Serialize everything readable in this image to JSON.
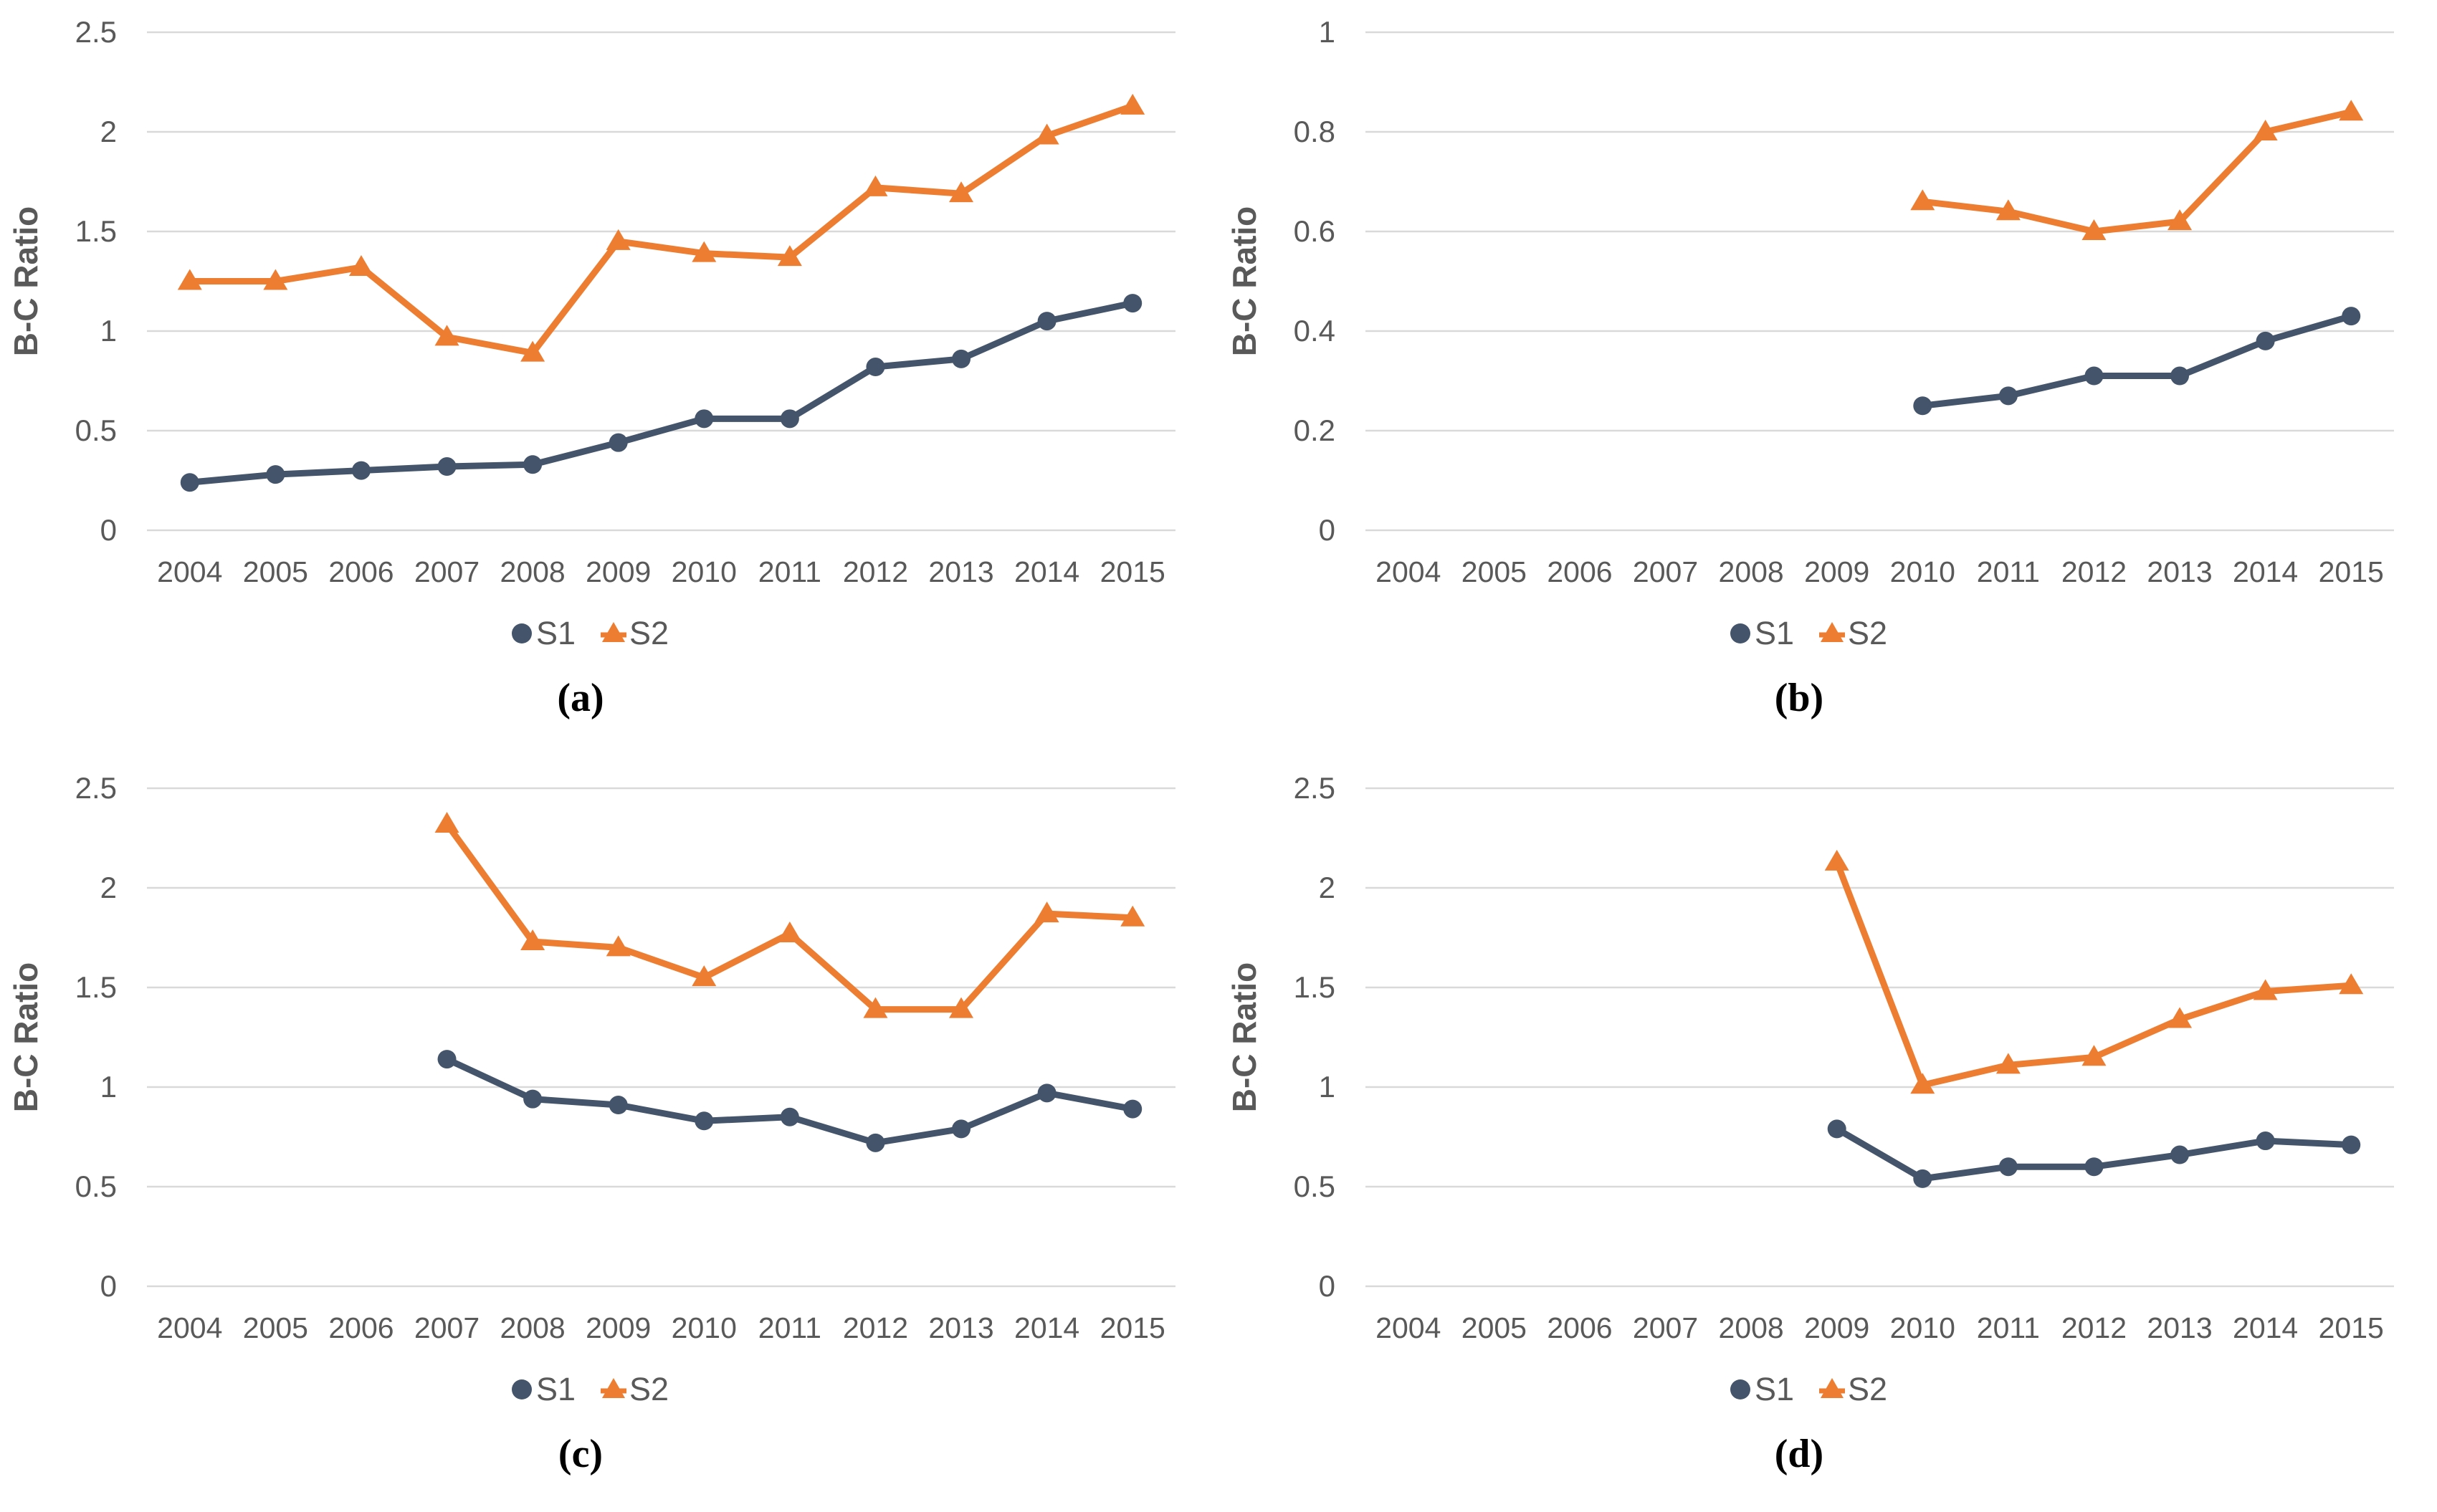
{
  "colors": {
    "s1": "#44546A",
    "s2": "#ED7D31",
    "gridline": "#D9D9D9",
    "axis_text": "#595959",
    "panel_label_color": "#000000"
  },
  "ylabel": "B-C Ratio",
  "legend": {
    "s1_label": "S1",
    "s2_label": "S2",
    "position": "bottom"
  },
  "years": [
    "2004",
    "2005",
    "2006",
    "2007",
    "2008",
    "2009",
    "2010",
    "2011",
    "2012",
    "2013",
    "2014",
    "2015"
  ],
  "chart_data": [
    {
      "type": "line",
      "panel_label": "(a)",
      "ylabel": "B-C Ratio",
      "x": [
        "2004",
        "2005",
        "2006",
        "2007",
        "2008",
        "2009",
        "2010",
        "2011",
        "2012",
        "2013",
        "2014",
        "2015"
      ],
      "ylim": [
        0,
        2.5
      ],
      "yticks": [
        2.5,
        2,
        1.5,
        1,
        0.5,
        0
      ],
      "ytick_labels": [
        "2.5",
        "2",
        "1.5",
        "1",
        "0.5",
        "0"
      ],
      "grid": true,
      "legend_position": "bottom",
      "series": [
        {
          "name": "S1",
          "marker": "circle",
          "color": "#44546A",
          "values": [
            0.24,
            0.28,
            0.3,
            0.32,
            0.33,
            0.44,
            0.56,
            0.56,
            0.82,
            0.86,
            1.05,
            1.14
          ]
        },
        {
          "name": "S2",
          "marker": "triangle",
          "color": "#ED7D31",
          "values": [
            1.25,
            1.25,
            1.32,
            0.97,
            0.89,
            1.45,
            1.39,
            1.37,
            1.72,
            1.69,
            1.98,
            2.13
          ]
        }
      ]
    },
    {
      "type": "line",
      "panel_label": "(b)",
      "ylabel": "B-C Ratio",
      "x": [
        "2004",
        "2005",
        "2006",
        "2007",
        "2008",
        "2009",
        "2010",
        "2011",
        "2012",
        "2013",
        "2014",
        "2015"
      ],
      "ylim": [
        0,
        1
      ],
      "yticks": [
        1,
        0.8,
        0.6,
        0.4,
        0.2,
        0
      ],
      "ytick_labels": [
        "1",
        "0.8",
        "0.6",
        "0.4",
        "0.2",
        "0"
      ],
      "grid": true,
      "legend_position": "bottom",
      "series": [
        {
          "name": "S1",
          "marker": "circle",
          "color": "#44546A",
          "values": [
            null,
            null,
            null,
            null,
            null,
            null,
            0.25,
            0.27,
            0.31,
            0.31,
            0.38,
            0.43
          ]
        },
        {
          "name": "S2",
          "marker": "triangle",
          "color": "#ED7D31",
          "values": [
            null,
            null,
            null,
            null,
            null,
            null,
            0.66,
            0.64,
            0.6,
            0.62,
            0.8,
            0.84
          ]
        }
      ]
    },
    {
      "type": "line",
      "panel_label": "(c)",
      "ylabel": "B-C Ratio",
      "x": [
        "2004",
        "2005",
        "2006",
        "2007",
        "2008",
        "2009",
        "2010",
        "2011",
        "2012",
        "2013",
        "2014",
        "2015"
      ],
      "ylim": [
        0,
        2.5
      ],
      "yticks": [
        2.5,
        2,
        1.5,
        1,
        0.5,
        0
      ],
      "ytick_labels": [
        "2.5",
        "2",
        "1.5",
        "1",
        "0.5",
        "0"
      ],
      "grid": true,
      "legend_position": "bottom",
      "series": [
        {
          "name": "S1",
          "marker": "circle",
          "color": "#44546A",
          "values": [
            null,
            null,
            null,
            1.14,
            0.94,
            0.91,
            0.83,
            0.85,
            0.72,
            0.79,
            0.97,
            0.89
          ]
        },
        {
          "name": "S2",
          "marker": "triangle",
          "color": "#ED7D31",
          "values": [
            null,
            null,
            null,
            2.32,
            1.73,
            1.7,
            1.55,
            1.77,
            1.39,
            1.39,
            1.87,
            1.85
          ]
        }
      ]
    },
    {
      "type": "line",
      "panel_label": "(d)",
      "ylabel": "B-C Ratio",
      "x": [
        "2004",
        "2005",
        "2006",
        "2007",
        "2008",
        "2009",
        "2010",
        "2011",
        "2012",
        "2013",
        "2014",
        "2015"
      ],
      "ylim": [
        0,
        2.5
      ],
      "yticks": [
        2.5,
        2,
        1.5,
        1,
        0.5,
        0
      ],
      "ytick_labels": [
        "2.5",
        "2",
        "1.5",
        "1",
        "0.5",
        "0"
      ],
      "grid": true,
      "legend_position": "bottom",
      "series": [
        {
          "name": "S1",
          "marker": "circle",
          "color": "#44546A",
          "values": [
            null,
            null,
            null,
            null,
            null,
            0.79,
            0.54,
            0.6,
            0.6,
            0.66,
            0.73,
            0.71
          ]
        },
        {
          "name": "S2",
          "marker": "triangle",
          "color": "#ED7D31",
          "values": [
            null,
            null,
            null,
            null,
            null,
            2.13,
            1.01,
            1.11,
            1.15,
            1.34,
            1.48,
            1.51
          ]
        }
      ]
    }
  ]
}
